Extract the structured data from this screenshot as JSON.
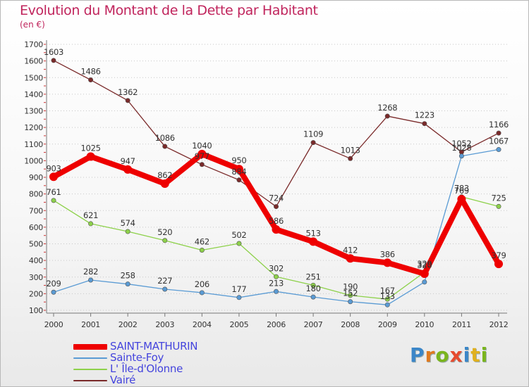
{
  "title": "Evolution du Montant de la Dette par Habitant",
  "subtitle": "(en €)",
  "brand": {
    "text": "Proxiti",
    "letter_colors": [
      "#3b86c8",
      "#e07a1f",
      "#7ab51d",
      "#e64b2f",
      "#3b86c8",
      "#e0b01f",
      "#7ab51d"
    ]
  },
  "chart_data": {
    "type": "line",
    "title": "Evolution du Montant de la Dette par Habitant",
    "subtitle": "(en €)",
    "x": [
      2000,
      2001,
      2002,
      2003,
      2004,
      2005,
      2006,
      2007,
      2008,
      2009,
      2010,
      2011,
      2012
    ],
    "ylim": [
      100,
      1700
    ],
    "yticks": [
      100,
      200,
      300,
      400,
      500,
      600,
      700,
      800,
      900,
      1000,
      1100,
      1200,
      1300,
      1400,
      1500,
      1600,
      1700
    ],
    "grid": "horizontal-dotted",
    "legend_position": "bottom-left",
    "series": [
      {
        "name": "SAINT-MATHURIN",
        "color": "#ee0000",
        "values": [
          903,
          1025,
          947,
          862,
          1040,
          950,
          586,
          513,
          412,
          386,
          320,
          769,
          379
        ],
        "labels": [
          "903",
          "1025",
          "947",
          "862",
          "1040",
          "950",
          "586",
          "513",
          "412",
          "386",
          "320",
          "769",
          "379"
        ]
      },
      {
        "name": "Sainte-Foy",
        "color": "#5a9bd4",
        "values": [
          209,
          282,
          258,
          227,
          206,
          177,
          213,
          180,
          152,
          133,
          270,
          1028,
          1067
        ],
        "labels": [
          "209",
          "282",
          "258",
          "227",
          "206",
          "177",
          "213",
          "180",
          "152",
          "133",
          "",
          "1028",
          "1067"
        ]
      },
      {
        "name": "L' Île-d'Olonne",
        "color": "#8dd14a",
        "values": [
          761,
          621,
          574,
          520,
          462,
          502,
          302,
          251,
          190,
          167,
          329,
          783,
          725
        ],
        "labels": [
          "761",
          "621",
          "574",
          "520",
          "462",
          "502",
          "302",
          "251",
          "190",
          "167",
          "329",
          "783",
          "725"
        ]
      },
      {
        "name": "Vairé",
        "color": "#7a2a2a",
        "values": [
          1603,
          1486,
          1362,
          1086,
          977,
          884,
          724,
          1109,
          1013,
          1268,
          1223,
          1052,
          1166
        ],
        "labels": [
          "1603",
          "1486",
          "1362",
          "1086",
          "977",
          "884",
          "724",
          "1109",
          "1013",
          "1268",
          "1223",
          "1052",
          "1166"
        ]
      }
    ]
  }
}
